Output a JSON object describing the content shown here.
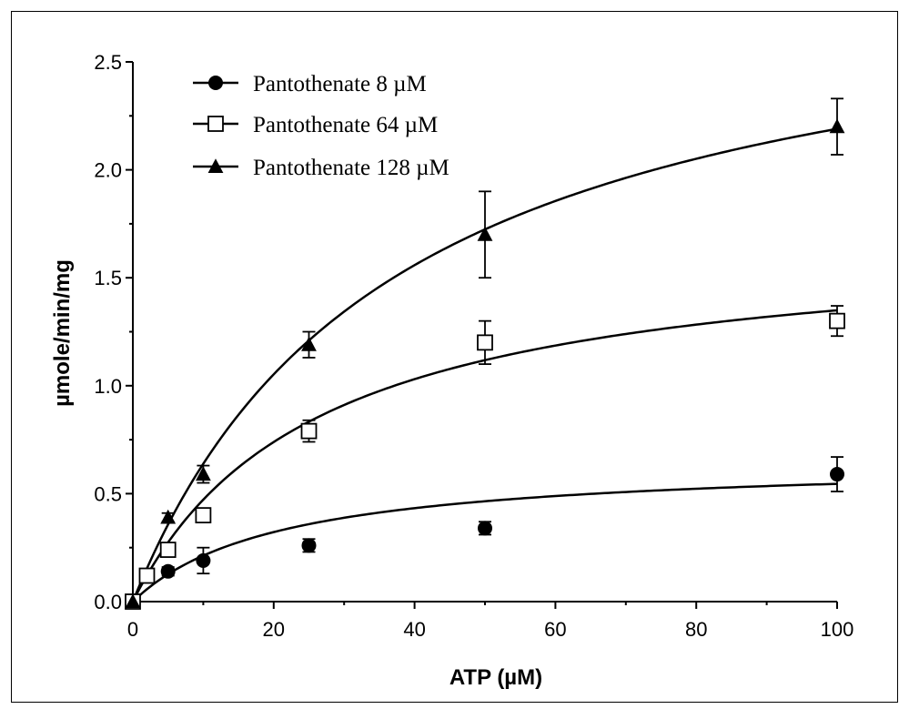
{
  "chart_data": {
    "type": "scatter",
    "xlabel": "ATP (µM)",
    "ylabel": "µmole/min/mg",
    "xlim": [
      0,
      100
    ],
    "ylim": [
      0,
      2.5
    ],
    "xticks": [
      0,
      20,
      40,
      60,
      80,
      100
    ],
    "yticks": [
      0.0,
      0.5,
      1.0,
      1.5,
      2.0,
      2.5
    ],
    "ytick_labels": [
      "0.0",
      "0.5",
      "1.0",
      "1.5",
      "2.0",
      "2.5"
    ],
    "legend_position": "top-left",
    "series": [
      {
        "name": "Pantothenate 8 µM",
        "marker": "filled-circle",
        "x": [
          0,
          2,
          5,
          10,
          25,
          50,
          100
        ],
        "y": [
          0.0,
          0.12,
          0.14,
          0.19,
          0.26,
          0.34,
          0.59
        ],
        "err": [
          0.0,
          0.02,
          0.02,
          0.06,
          0.03,
          0.03,
          0.08
        ],
        "fit": {
          "vmax": 0.66,
          "km": 21
        }
      },
      {
        "name": "Pantothenate 64 µM",
        "marker": "open-square",
        "x": [
          0,
          2,
          5,
          10,
          25,
          50,
          100
        ],
        "y": [
          0.0,
          0.12,
          0.24,
          0.4,
          0.79,
          1.2,
          1.3
        ],
        "err": [
          0.0,
          0.02,
          0.03,
          0.03,
          0.05,
          0.1,
          0.07
        ],
        "fit": {
          "vmax": 1.7,
          "km": 26
        }
      },
      {
        "name": "Pantothenate 128 µM",
        "marker": "filled-triangle",
        "x": [
          0,
          5,
          10,
          25,
          50,
          100
        ],
        "y": [
          0.0,
          0.39,
          0.59,
          1.19,
          1.7,
          2.2
        ],
        "err": [
          0.0,
          0.02,
          0.04,
          0.06,
          0.2,
          0.13
        ],
        "fit": {
          "vmax": 3.0,
          "km": 37
        }
      }
    ]
  }
}
